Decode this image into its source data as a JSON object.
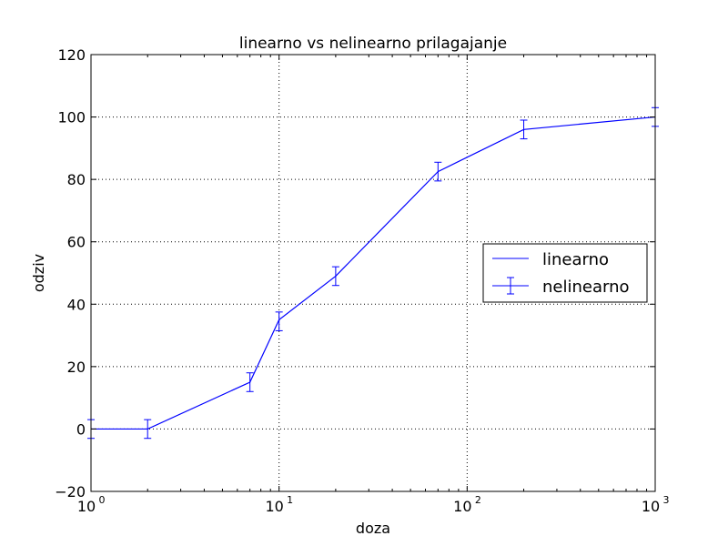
{
  "chart_data": {
    "type": "line",
    "title": "linearno vs nelinearno prilagajanje",
    "xlabel": "doza",
    "ylabel": "odziv",
    "xscale": "log",
    "xlim": [
      1,
      1000
    ],
    "ylim": [
      -20,
      120
    ],
    "grid": true,
    "legend_position": "center-right",
    "x_ticks": [
      {
        "value": 1,
        "base": "10",
        "exp": "0"
      },
      {
        "value": 10,
        "base": "10",
        "exp": "1"
      },
      {
        "value": 100,
        "base": "10",
        "exp": "2"
      },
      {
        "value": 1000,
        "base": "10",
        "exp": "3"
      }
    ],
    "y_ticks": [
      {
        "value": -20,
        "label": "−20"
      },
      {
        "value": 0,
        "label": "0"
      },
      {
        "value": 20,
        "label": "20"
      },
      {
        "value": 40,
        "label": "40"
      },
      {
        "value": 60,
        "label": "60"
      },
      {
        "value": 80,
        "label": "80"
      },
      {
        "value": 100,
        "label": "100"
      },
      {
        "value": 120,
        "label": "120"
      }
    ],
    "series": [
      {
        "name": "linearno",
        "kind": "line",
        "color": "#0000ff",
        "x": [
          1,
          2,
          7,
          10,
          20,
          70,
          200,
          1000
        ],
        "y": [
          0,
          0,
          15,
          35,
          49,
          82.5,
          96,
          100
        ]
      },
      {
        "name": "nelinearno",
        "kind": "errorbar",
        "color": "#0000ff",
        "x": [
          1,
          2,
          7,
          10,
          20,
          70,
          200,
          1000
        ],
        "y": [
          0,
          0,
          15,
          34.5,
          49,
          82.5,
          96,
          100
        ],
        "yerr": [
          3,
          3,
          3,
          3,
          3,
          3,
          3,
          3
        ]
      }
    ]
  }
}
